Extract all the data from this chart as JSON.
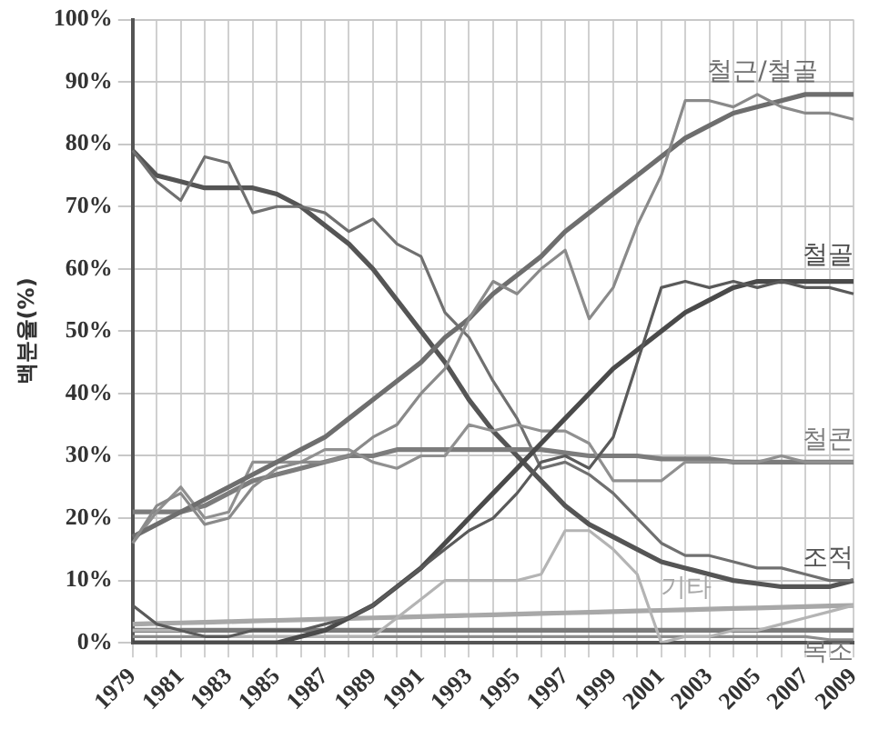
{
  "chart_data": {
    "type": "line",
    "ylabel": "백분율(%)",
    "categories": [
      "1979",
      null,
      "1981",
      null,
      "1983",
      null,
      "1985",
      null,
      "1987",
      null,
      "1989",
      null,
      "1991",
      null,
      "1993",
      null,
      "1995",
      null,
      "1997",
      null,
      "1999",
      null,
      "2001",
      null,
      "2003",
      null,
      "2005",
      null,
      "2007",
      null,
      "2009"
    ],
    "ylim": [
      0,
      100
    ],
    "yticks": [
      {
        "value": 0,
        "label": "0%"
      },
      {
        "value": 10,
        "label": "10%"
      },
      {
        "value": 20,
        "label": "20%"
      },
      {
        "value": 30,
        "label": "30%"
      },
      {
        "value": 40,
        "label": "40%"
      },
      {
        "value": 50,
        "label": "50%"
      },
      {
        "value": 60,
        "label": "60%"
      },
      {
        "value": 70,
        "label": "70%"
      },
      {
        "value": 80,
        "label": "80%"
      },
      {
        "value": 90,
        "label": "90%"
      },
      {
        "value": 100,
        "label": "100%"
      }
    ],
    "grid": true,
    "legend": false,
    "marker": "none",
    "line_style": "solid",
    "series": [
      {
        "color": "#8a8a8a",
        "values": [
          16,
          22,
          24,
          19,
          20,
          25,
          28,
          29,
          29,
          30,
          33,
          35,
          40,
          44,
          52,
          58,
          56,
          60,
          63,
          52,
          57,
          67,
          75,
          87,
          87,
          86,
          88,
          86,
          85,
          85,
          84
        ]
      },
      {
        "name": "철근/철골",
        "color": "#6e6e6e",
        "values": [
          17,
          19,
          21,
          23,
          25,
          27,
          29,
          31,
          33,
          36,
          39,
          42,
          45,
          49,
          52,
          56,
          59,
          62,
          66,
          69,
          72,
          75,
          78,
          81,
          83,
          85,
          86,
          87,
          88,
          88,
          88
        ]
      },
      {
        "color": "#5a5a5a",
        "values": [
          6,
          3,
          2,
          1,
          1,
          2,
          2,
          2,
          3,
          4,
          6,
          9,
          12,
          15,
          18,
          20,
          24,
          29,
          30,
          28,
          33,
          45,
          57,
          58,
          57,
          58,
          57,
          58,
          57,
          57,
          56
        ]
      },
      {
        "name": "철골",
        "color": "#4a4a4a",
        "values": [
          0,
          0,
          0,
          0,
          0,
          0,
          0,
          1,
          2,
          4,
          6,
          9,
          12,
          16,
          20,
          24,
          28,
          32,
          36,
          40,
          44,
          47,
          50,
          53,
          55,
          57,
          58,
          58,
          58,
          58,
          58
        ]
      },
      {
        "color": "#909090",
        "values": [
          16,
          21,
          25,
          20,
          21,
          29,
          29,
          29,
          31,
          31,
          29,
          28,
          30,
          30,
          35,
          34,
          35,
          34,
          34,
          32,
          26,
          26,
          26,
          29,
          29,
          29,
          29,
          30,
          29,
          29,
          29
        ]
      },
      {
        "name": "철콘",
        "color": "#7c7c7c",
        "values": [
          21,
          21,
          21,
          22,
          24,
          26,
          27,
          28,
          29,
          30,
          30,
          31,
          31,
          31,
          31,
          31,
          31,
          31,
          30.5,
          30,
          30,
          30,
          29.5,
          29.5,
          29.5,
          29,
          29,
          29,
          29,
          29,
          29
        ]
      },
      {
        "color": "#707070",
        "values": [
          79,
          74,
          71,
          78,
          77,
          69,
          70,
          70,
          69,
          66,
          68,
          64,
          62,
          53,
          49,
          42,
          36,
          28,
          29,
          27,
          24,
          20,
          16,
          14,
          14,
          13,
          12,
          12,
          11,
          10,
          10
        ]
      },
      {
        "name": "조적",
        "color": "#555555",
        "values": [
          79,
          75,
          74,
          73,
          73,
          73,
          72,
          70,
          67,
          64,
          60,
          55,
          50,
          45,
          39,
          34,
          30,
          26,
          22,
          19,
          17,
          15,
          13,
          12,
          11,
          10,
          9.5,
          9,
          9,
          9,
          10
        ]
      },
      {
        "color": "#b4b4b4",
        "values": [
          2,
          2,
          2,
          1,
          1,
          1,
          1,
          1,
          1,
          1,
          1,
          4,
          7,
          10,
          10,
          10,
          10,
          11,
          18,
          18,
          15,
          11,
          0,
          1,
          1,
          2,
          2,
          3,
          4,
          5,
          6
        ]
      },
      {
        "name": "기타",
        "color": "#a8a8a8",
        "values": [
          3,
          3.1,
          3.2,
          3.3,
          3.4,
          3.5,
          3.6,
          3.7,
          3.8,
          3.9,
          4,
          4.1,
          4.2,
          4.3,
          4.4,
          4.5,
          4.6,
          4.7,
          4.8,
          4.9,
          5,
          5.1,
          5.2,
          5.3,
          5.4,
          5.5,
          5.6,
          5.7,
          5.8,
          5.9,
          6
        ]
      },
      {
        "color": "#8c8c8c",
        "values": [
          1,
          1,
          1,
          1,
          1,
          1,
          1,
          1,
          1,
          1,
          1,
          1,
          1,
          1,
          1,
          1,
          1,
          1,
          1,
          1,
          1,
          1,
          1,
          1,
          1,
          1,
          1,
          1,
          1,
          0.5,
          0.5
        ]
      },
      {
        "name": "목조",
        "color": "#7a7a7a",
        "values": [
          2,
          2,
          2,
          2,
          2,
          2,
          2,
          2,
          2,
          2,
          2,
          2,
          2,
          2,
          2,
          2,
          2,
          2,
          2,
          2,
          2,
          2,
          2,
          2,
          2,
          2,
          2,
          2,
          2,
          2,
          2
        ]
      }
    ]
  }
}
